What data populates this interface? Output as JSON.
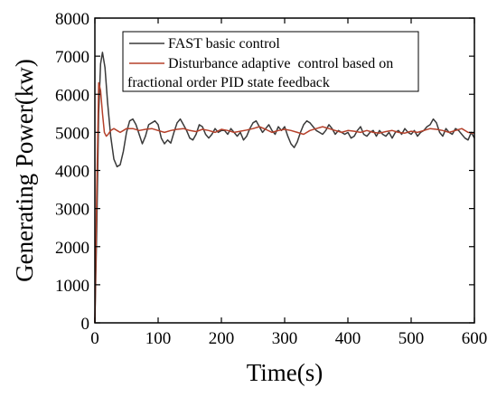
{
  "chart_data": {
    "type": "line",
    "xlabel": "Time(s)",
    "ylabel": "Generating Power(kw)",
    "xlim": [
      0,
      600
    ],
    "ylim": [
      0,
      8000
    ],
    "xticks": [
      0,
      100,
      200,
      300,
      400,
      500,
      600
    ],
    "yticks": [
      0,
      1000,
      2000,
      3000,
      4000,
      5000,
      6000,
      7000,
      8000
    ],
    "grid": false,
    "legend_position": "top-right",
    "series": [
      {
        "name": "FAST basic control",
        "color": "#3a3a3a",
        "x": [
          0,
          3,
          6,
          9,
          12,
          16,
          20,
          25,
          30,
          35,
          40,
          45,
          50,
          55,
          60,
          65,
          70,
          75,
          80,
          85,
          90,
          95,
          100,
          105,
          110,
          115,
          120,
          125,
          130,
          135,
          140,
          145,
          150,
          155,
          160,
          165,
          170,
          175,
          180,
          185,
          190,
          195,
          200,
          205,
          210,
          215,
          220,
          225,
          230,
          235,
          240,
          245,
          250,
          255,
          260,
          265,
          270,
          275,
          280,
          285,
          290,
          295,
          300,
          305,
          310,
          315,
          320,
          325,
          330,
          335,
          340,
          345,
          350,
          355,
          360,
          365,
          370,
          375,
          380,
          385,
          390,
          395,
          400,
          405,
          410,
          415,
          420,
          425,
          430,
          435,
          440,
          445,
          450,
          455,
          460,
          465,
          470,
          475,
          480,
          485,
          490,
          495,
          500,
          505,
          510,
          515,
          520,
          525,
          530,
          535,
          540,
          545,
          550,
          555,
          560,
          565,
          570,
          575,
          580,
          585,
          590,
          595,
          600
        ],
        "y": [
          0,
          2500,
          5500,
          6800,
          7100,
          6700,
          5800,
          4900,
          4300,
          4100,
          4150,
          4500,
          5000,
          5300,
          5350,
          5200,
          4950,
          4700,
          4900,
          5200,
          5250,
          5300,
          5200,
          4850,
          4700,
          4800,
          4720,
          5000,
          5250,
          5350,
          5200,
          5050,
          4850,
          4800,
          4950,
          5200,
          5150,
          4950,
          4850,
          4950,
          5100,
          5000,
          5050,
          5050,
          4950,
          5100,
          5000,
          4900,
          5000,
          4800,
          4900,
          5100,
          5250,
          5300,
          5150,
          5000,
          5100,
          5200,
          5050,
          4950,
          5150,
          5050,
          5150,
          4900,
          4700,
          4600,
          4750,
          5000,
          5200,
          5300,
          5250,
          5150,
          5050,
          5000,
          4950,
          5050,
          5200,
          5100,
          4950,
          5050,
          5000,
          4950,
          5000,
          4850,
          4900,
          5050,
          5150,
          4950,
          4900,
          5000,
          5050,
          4900,
          5050,
          4950,
          4900,
          5000,
          4850,
          5000,
          5050,
          4950,
          5100,
          5000,
          4950,
          5050,
          4900,
          5000,
          5050,
          5150,
          5200,
          5350,
          5250,
          5000,
          4900,
          5100,
          5000,
          4950,
          5100,
          5050,
          4950,
          4850,
          4800,
          5000,
          4850
        ]
      },
      {
        "name": "Disturbance adaptive  control based on fractional order PID state feedback",
        "color": "#b5402a",
        "x": [
          0,
          3,
          6,
          9,
          12,
          15,
          18,
          21,
          25,
          30,
          35,
          40,
          45,
          50,
          60,
          70,
          80,
          90,
          100,
          110,
          120,
          130,
          140,
          150,
          160,
          170,
          180,
          190,
          200,
          210,
          220,
          230,
          240,
          250,
          260,
          270,
          280,
          290,
          300,
          310,
          320,
          330,
          340,
          350,
          360,
          370,
          380,
          390,
          400,
          410,
          420,
          430,
          440,
          450,
          460,
          470,
          480,
          490,
          500,
          510,
          520,
          530,
          540,
          550,
          560,
          570,
          580,
          590,
          600
        ],
        "y": [
          0,
          3500,
          6300,
          6100,
          5500,
          5000,
          4900,
          4950,
          5050,
          5100,
          5050,
          5000,
          5050,
          5100,
          5100,
          5050,
          5080,
          5100,
          5050,
          5000,
          5050,
          5080,
          5100,
          5050,
          5020,
          5080,
          5050,
          5000,
          5080,
          5050,
          5000,
          5030,
          5060,
          5100,
          5150,
          5080,
          5000,
          5050,
          5080,
          5050,
          5000,
          4950,
          5050,
          5100,
          5150,
          5100,
          5050,
          5000,
          5050,
          5030,
          5000,
          5050,
          5000,
          4980,
          5020,
          5050,
          5000,
          4980,
          5030,
          5000,
          5050,
          5100,
          5080,
          5050,
          5000,
          5050,
          5100,
          5000,
          4980
        ]
      }
    ]
  }
}
